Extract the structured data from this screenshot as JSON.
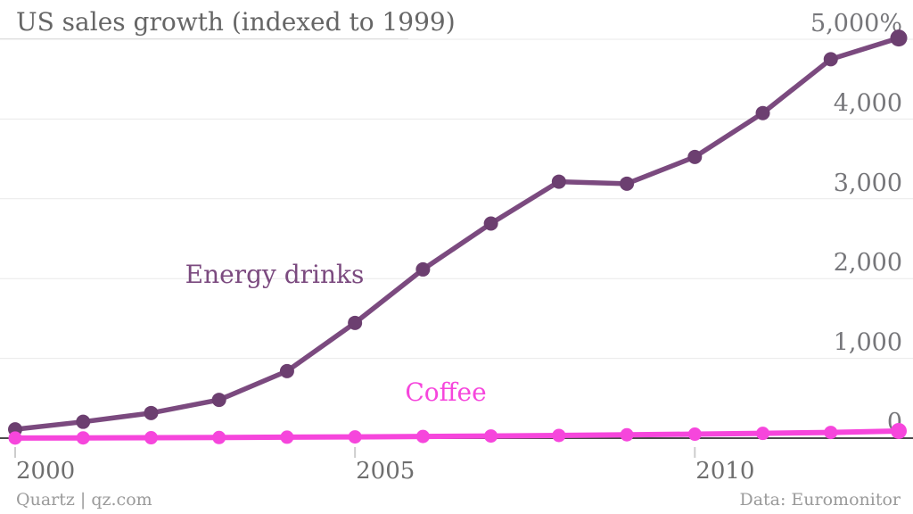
{
  "header": {
    "title": "US sales growth (indexed to 1999)"
  },
  "footer": {
    "left": "Quartz | qz.com",
    "right": "Data: Euromonitor"
  },
  "colors": {
    "grid": "#e9e9e9",
    "zero_axis": "#4c4c4c",
    "tick": "#cdcdcd",
    "title_text": "#666666",
    "axis_text": "#76767a",
    "footer_text": "#9a9a9a",
    "energy_line": "#7b4a7f",
    "energy_marker": "#6c3f70",
    "coffee_line": "#f646dc"
  },
  "chart_data": {
    "type": "line",
    "title": "US sales growth (indexed to 1999)",
    "x": [
      2000,
      2001,
      2002,
      2003,
      2004,
      2005,
      2006,
      2007,
      2008,
      2009,
      2010,
      2011,
      2012,
      2013
    ],
    "xlabel": "",
    "ylabel": "",
    "y_unit": "%",
    "ylim": [
      0,
      5000
    ],
    "grid": "horizontal",
    "legend": "inline-labels",
    "y_ticks": [
      {
        "value": 0,
        "label": "0"
      },
      {
        "value": 1000,
        "label": "1,000"
      },
      {
        "value": 2000,
        "label": "2,000"
      },
      {
        "value": 3000,
        "label": "3,000"
      },
      {
        "value": 4000,
        "label": "4,000"
      },
      {
        "value": 5000,
        "label": "5,000%"
      }
    ],
    "x_ticks": [
      {
        "value": 2000,
        "label": "2000"
      },
      {
        "value": 2005,
        "label": "2005"
      },
      {
        "value": 2010,
        "label": "2010"
      }
    ],
    "series": [
      {
        "name": "Energy drinks",
        "color": "#7b4a7f",
        "marker_color": "#6c3f70",
        "values": [
          110,
          205,
          315,
          480,
          840,
          1445,
          2115,
          2690,
          3215,
          3190,
          3525,
          4075,
          4750,
          5015
        ]
      },
      {
        "name": "Coffee",
        "color": "#f646dc",
        "marker_color": "#f646dc",
        "values": [
          2,
          3,
          5,
          8,
          12,
          16,
          21,
          27,
          34,
          42,
          50,
          60,
          72,
          90
        ]
      }
    ]
  }
}
